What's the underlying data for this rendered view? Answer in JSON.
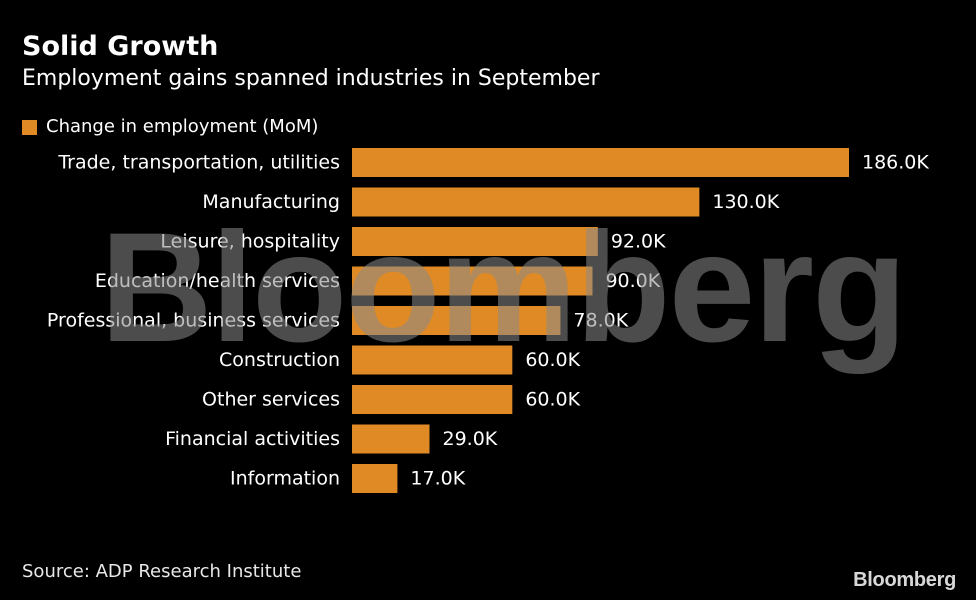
{
  "header": {
    "title": "Solid Growth",
    "subtitle": "Employment gains spanned industries in September"
  },
  "colors": {
    "background": "#000000",
    "bar": "#e08a25",
    "text": "#ffffff",
    "watermark": "#8a8a8a"
  },
  "chart_data": {
    "type": "bar",
    "orientation": "horizontal",
    "title": "Solid Growth",
    "subtitle": "Employment gains spanned industries in September",
    "categories": [
      "Trade, transportation, utilities",
      "Manufacturing",
      "Leisure, hospitality",
      "Education/health services",
      "Professional, business services",
      "Construction",
      "Other services",
      "Financial activities",
      "Information"
    ],
    "series": [
      {
        "name": "Change in employment (MoM)",
        "values": [
          186000,
          130000,
          92000,
          90000,
          78000,
          60000,
          60000,
          29000,
          17000
        ],
        "labels": [
          "186.0K",
          "130.0K",
          "92.0K",
          "90.0K",
          "78.0K",
          "60.0K",
          "60.0K",
          "29.0K",
          "17.0K"
        ]
      }
    ],
    "xlim": [
      0,
      186000
    ],
    "grid": false,
    "legend": "top-left"
  },
  "footer": {
    "source": "Source: ADP Research Institute",
    "logo": "Bloomberg"
  },
  "watermark": {
    "text": "Bloomberg"
  }
}
